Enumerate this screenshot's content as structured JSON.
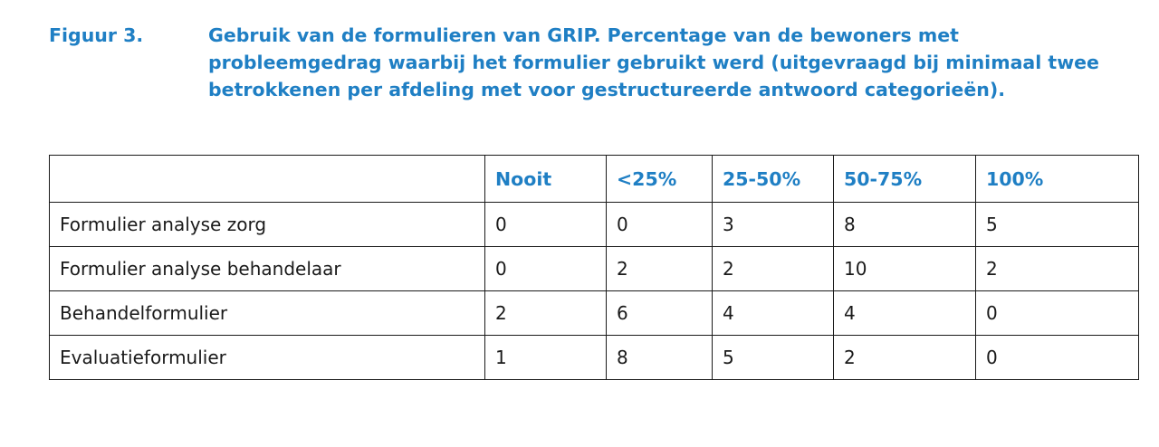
{
  "figure": {
    "label": "Figuur 3.",
    "caption": "Gebruik van de formulieren van GRIP. Percentage van de bewoners met probleemgedrag  waarbij het formulier gebruikt werd (uitgevraagd bij minimaal twee betrokkenen per afdeling met voor gestructureerde antwoord categorieën)."
  },
  "table": {
    "header": [
      "",
      "Nooit",
      "<25%",
      "25-50%",
      "50-75%",
      "100%"
    ],
    "rows": [
      {
        "label": "Formulier analyse zorg",
        "values": [
          "0",
          "0",
          "3",
          "8",
          "5"
        ]
      },
      {
        "label": "Formulier analyse behandelaar",
        "values": [
          "0",
          "2",
          "2",
          "10",
          "2"
        ]
      },
      {
        "label": "Behandelformulier",
        "values": [
          "2",
          "6",
          "4",
          "4",
          "0"
        ]
      },
      {
        "label": "Evaluatieformulier",
        "values": [
          "1",
          "8",
          "5",
          "2",
          "0"
        ]
      }
    ]
  },
  "colors": {
    "heading_blue": "#1f7fc4",
    "text": "#1a1a1a",
    "border": "#1a1a1a"
  }
}
